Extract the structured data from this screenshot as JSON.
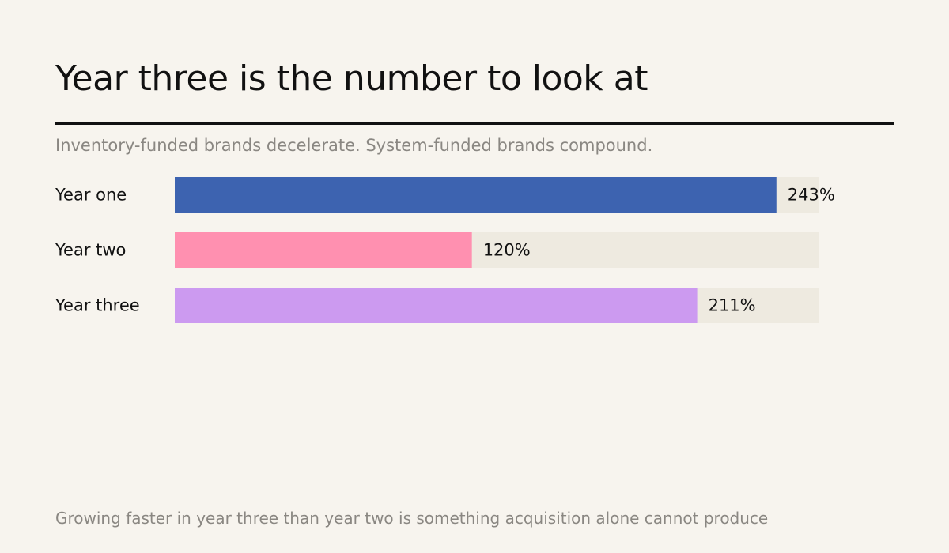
{
  "header": {
    "title": "Year three is the number to look at",
    "subtitle": "Inventory-funded brands decelerate. System-funded brands compound."
  },
  "footer": {
    "note": "Growing faster in year three than year two is something acquisition alone cannot produce"
  },
  "chart_data": {
    "type": "bar",
    "orientation": "horizontal",
    "categories": [
      "Year one",
      "Year two",
      "Year three"
    ],
    "values": [
      243,
      120,
      211
    ],
    "value_labels": [
      "243%",
      "120%",
      "211%"
    ],
    "colors": [
      "#3d63b0",
      "#ff90b0",
      "#cc9af0"
    ],
    "track_color": "#eeeae0",
    "xlim": [
      0,
      260
    ],
    "grid": false,
    "legend": "none"
  }
}
